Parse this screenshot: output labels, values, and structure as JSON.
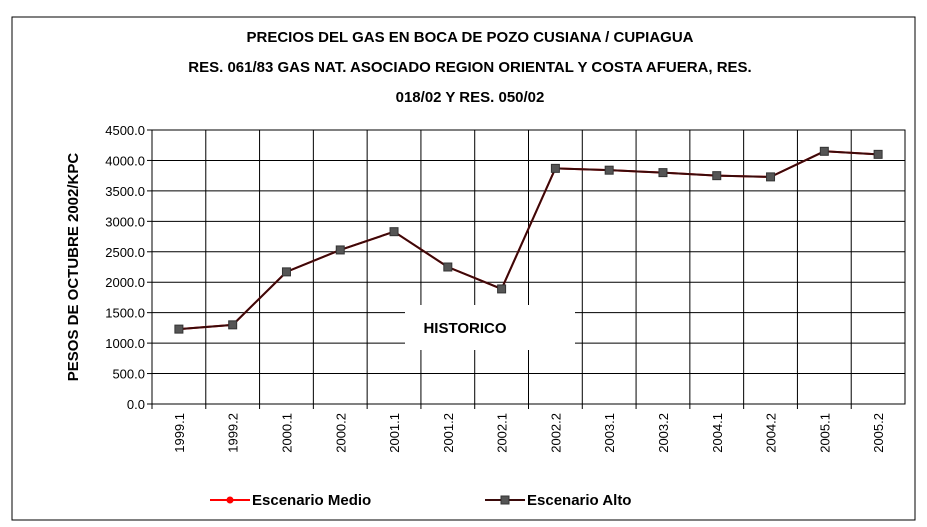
{
  "chart_data": {
    "type": "line",
    "title": [
      "PRECIOS DEL GAS EN BOCA DE POZO CUSIANA / CUPIAGUA",
      "RES. 061/83 GAS NAT. ASOCIADO REGION ORIENTAL Y COSTA AFUERA, RES.",
      "018/02 Y RES. 050/02"
    ],
    "y_label": "PESOS DE OCTUBRE 2002/KPC",
    "annotation": "HISTORICO",
    "categories": [
      "1999.1",
      "1999.2",
      "2000.1",
      "2000.2",
      "2001.1",
      "2001.2",
      "2002.1",
      "2002.2",
      "2003.1",
      "2003.2",
      "2004.1",
      "2004.2",
      "2005.1",
      "2005.2"
    ],
    "series": [
      {
        "name": "Escenario Medio",
        "color": "#ff0000",
        "marker": "circle",
        "values": [
          1230,
          1300,
          2170,
          2530,
          2830,
          2250,
          1890,
          3870,
          3840,
          3800,
          3750,
          3730,
          4150,
          4100
        ]
      },
      {
        "name": "Escenario Alto",
        "color": "#3a0a0a",
        "marker": "square",
        "values": [
          1230,
          1300,
          2170,
          2530,
          2830,
          2250,
          1890,
          3870,
          3840,
          3800,
          3750,
          3730,
          4150,
          4100
        ]
      }
    ],
    "ylim": [
      0,
      4500
    ],
    "yticks": [
      {
        "value": 0,
        "label": "0.0"
      },
      {
        "value": 500,
        "label": "500.0"
      },
      {
        "value": 1000,
        "label": "1000.0"
      },
      {
        "value": 1500,
        "label": "1500.0"
      },
      {
        "value": 2000,
        "label": "2000.0"
      },
      {
        "value": 2500,
        "label": "2500.0"
      },
      {
        "value": 3000,
        "label": "3000.0"
      },
      {
        "value": 3500,
        "label": "3500.0"
      },
      {
        "value": 4000,
        "label": "4000.0"
      },
      {
        "value": 4500,
        "label": "4500.0"
      }
    ],
    "grid": true
  }
}
